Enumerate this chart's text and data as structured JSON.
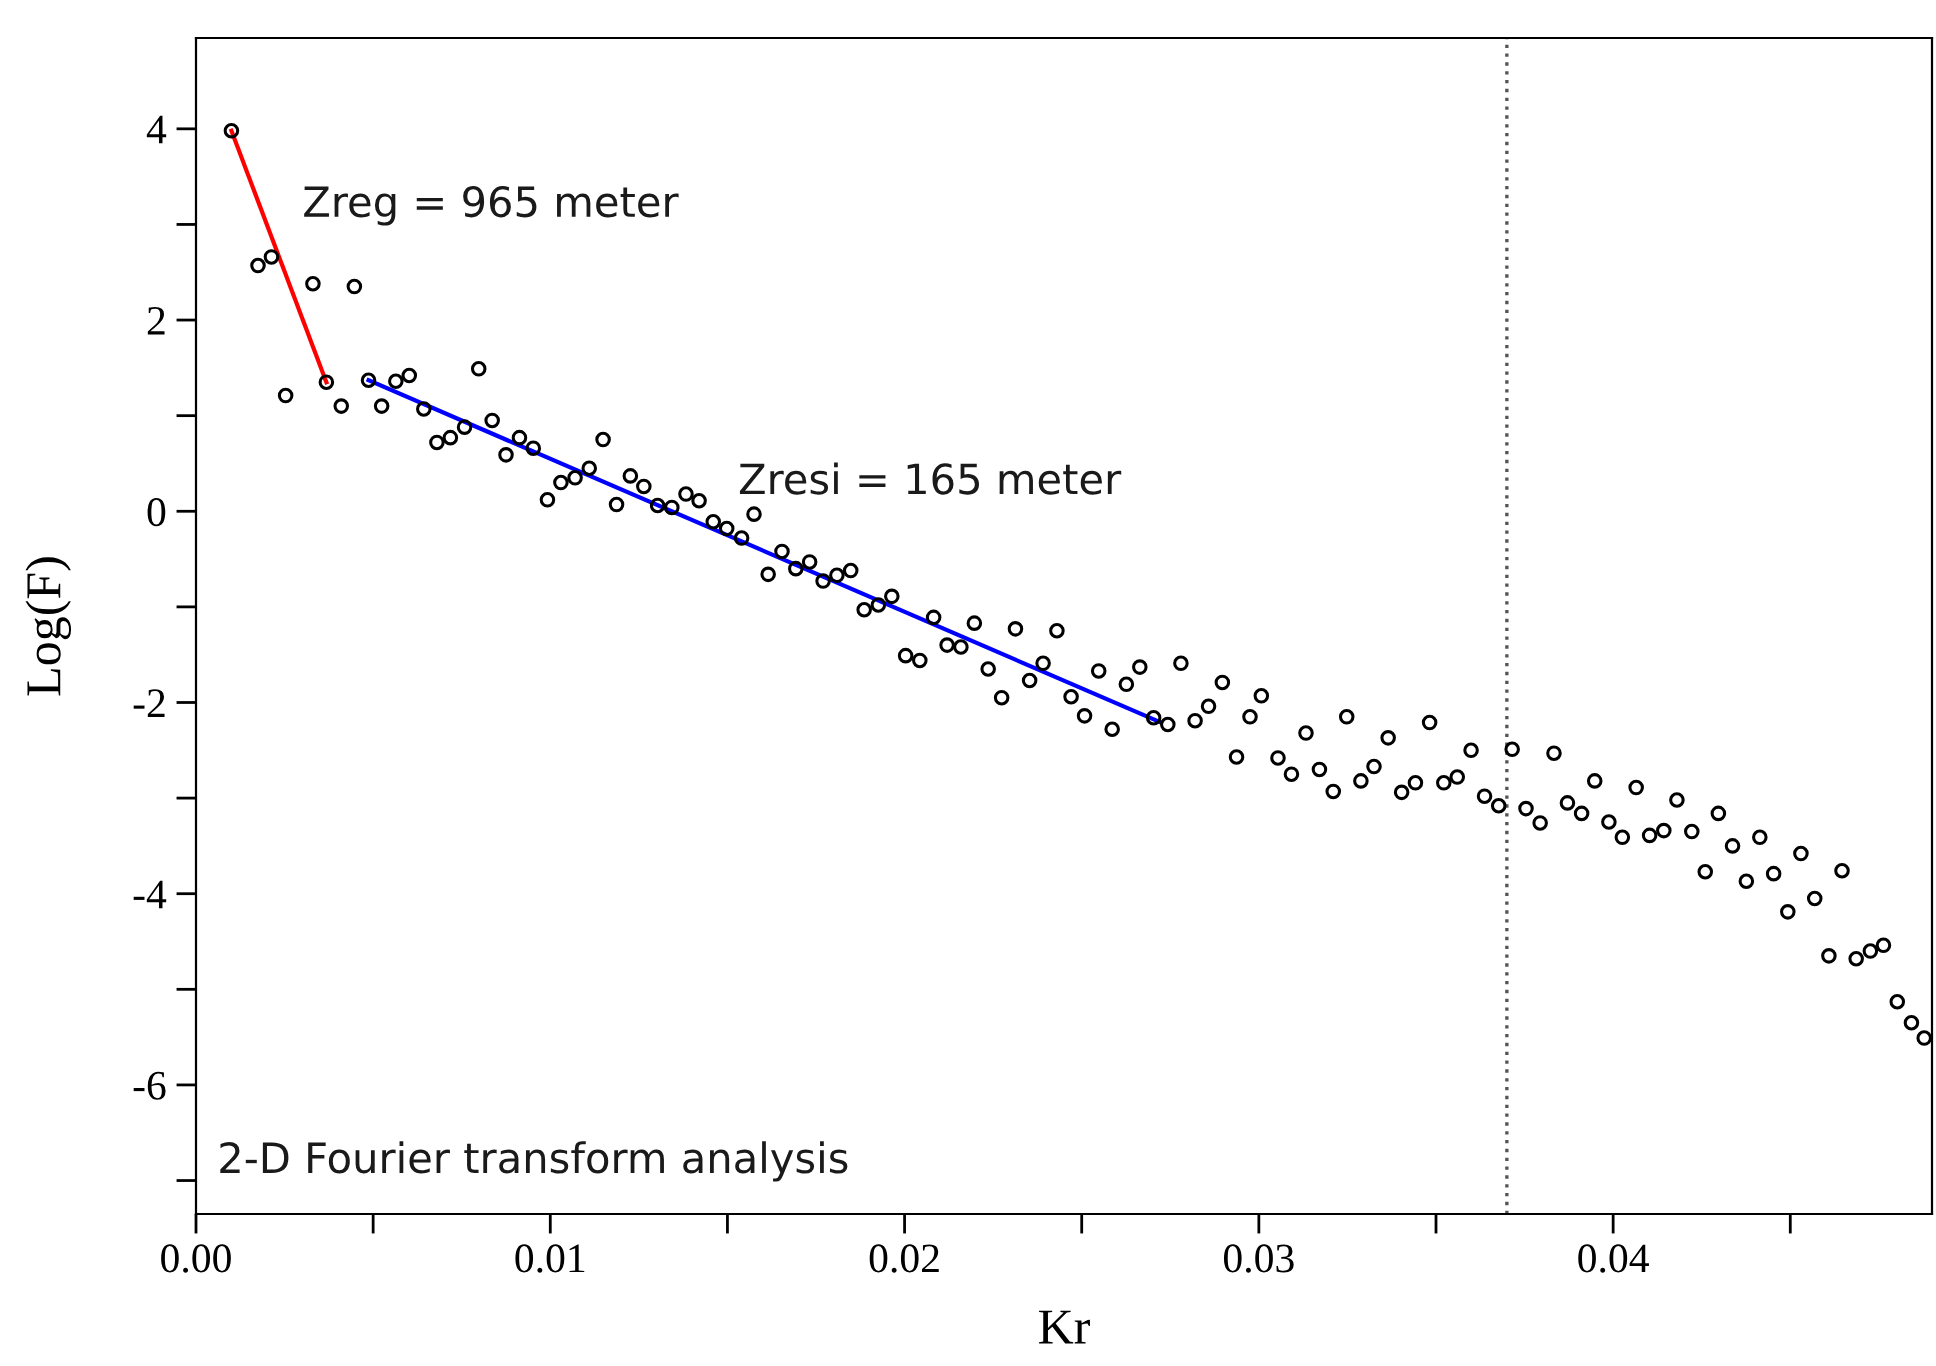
{
  "chart_data": {
    "type": "scatter",
    "xlabel": "Kr",
    "ylabel": "Log(F)",
    "annotations": [
      "Zreg = 965 meter",
      "Zresi = 165 meter",
      "2-D Fourier transform analysis"
    ],
    "xlim": [
      0,
      0.049
    ],
    "ylim": [
      -7.35,
      4.95
    ],
    "xticks": [
      {
        "value": 0,
        "label": "0.00"
      },
      {
        "value": 0.005,
        "label": null
      },
      {
        "value": 0.01,
        "label": "0.01"
      },
      {
        "value": 0.015,
        "label": null
      },
      {
        "value": 0.02,
        "label": "0.02"
      },
      {
        "value": 0.025,
        "label": null
      },
      {
        "value": 0.03,
        "label": "0.03"
      },
      {
        "value": 0.035,
        "label": null
      },
      {
        "value": 0.04,
        "label": "0.04"
      },
      {
        "value": 0.045,
        "label": null
      }
    ],
    "yticks": [
      {
        "value": -7,
        "label": null
      },
      -6,
      {
        "value": -5,
        "label": null
      },
      -4,
      {
        "value": -3,
        "label": null
      },
      -2,
      {
        "value": -1,
        "label": null
      },
      0,
      {
        "value": 1,
        "label": null
      },
      2,
      {
        "value": 3,
        "label": null
      },
      4
    ],
    "ref_lines": [
      {
        "axis": "x",
        "value": 0.037,
        "color": "#555555",
        "line_style": "dotted"
      }
    ],
    "grid": false,
    "series": [
      {
        "color": "#000000",
        "marker": "circle",
        "x": [
          0.001,
          0.00175,
          0.00213,
          0.00253,
          0.0033,
          0.00368,
          0.0041,
          0.00447,
          0.00487,
          0.00524,
          0.00564,
          0.00602,
          0.00643,
          0.0068,
          0.00718,
          0.00758,
          0.00798,
          0.00836,
          0.00875,
          0.00913,
          0.00952,
          0.00992,
          0.0103,
          0.0107,
          0.0111,
          0.01149,
          0.01187,
          0.01226,
          0.01264,
          0.01303,
          0.01343,
          0.01383,
          0.0142,
          0.0146,
          0.01498,
          0.0154,
          0.01575,
          0.01615,
          0.01654,
          0.01693,
          0.01732,
          0.0177,
          0.01809,
          0.01848,
          0.01886,
          0.01926,
          0.01964,
          0.02003,
          0.02043,
          0.02082,
          0.0212,
          0.02159,
          0.02197,
          0.02236,
          0.02274,
          0.02313,
          0.02353,
          0.02391,
          0.0243,
          0.0247,
          0.02508,
          0.02548,
          0.02586,
          0.02626,
          0.02664,
          0.02703,
          0.02743,
          0.0278,
          0.0282,
          0.02858,
          0.02897,
          0.02937,
          0.02975,
          0.03007,
          0.03054,
          0.03092,
          0.03133,
          0.03171,
          0.0321,
          0.03248,
          0.03288,
          0.03325,
          0.03365,
          0.03403,
          0.03442,
          0.03482,
          0.03522,
          0.0356,
          0.03599,
          0.03637,
          0.03677,
          0.03715,
          0.03754,
          0.03794,
          0.03833,
          0.03871,
          0.03911,
          0.03948,
          0.03988,
          0.04026,
          0.04065,
          0.04103,
          0.04143,
          0.0418,
          0.04222,
          0.0426,
          0.04297,
          0.04337,
          0.04376,
          0.04414,
          0.04453,
          0.04493,
          0.0453,
          0.04569,
          0.04609,
          0.04646,
          0.04686,
          0.04726,
          0.04763,
          0.04802,
          0.04842,
          0.04878
        ],
        "values": [
          3.98,
          2.57,
          2.66,
          1.21,
          2.38,
          1.35,
          1.1,
          2.35,
          1.37,
          1.1,
          1.36,
          1.42,
          1.07,
          0.72,
          0.77,
          0.88,
          1.49,
          0.95,
          0.59,
          0.77,
          0.66,
          0.12,
          0.3,
          0.35,
          0.45,
          0.75,
          0.07,
          0.37,
          0.26,
          0.06,
          0.04,
          0.18,
          0.11,
          -0.11,
          -0.18,
          -0.28,
          -0.03,
          -0.66,
          -0.42,
          -0.6,
          -0.53,
          -0.73,
          -0.67,
          -0.62,
          -1.03,
          -0.98,
          -0.89,
          -1.51,
          -1.56,
          -1.11,
          -1.4,
          -1.42,
          -1.17,
          -1.65,
          -1.95,
          -1.23,
          -1.77,
          -1.59,
          -1.25,
          -1.94,
          -2.14,
          -1.67,
          -2.28,
          -1.81,
          -1.63,
          -2.16,
          -2.23,
          -1.59,
          -2.19,
          -2.04,
          -1.79,
          -2.57,
          -2.15,
          -1.93,
          -2.58,
          -2.75,
          -2.32,
          -2.7,
          -2.93,
          -2.15,
          -2.82,
          -2.67,
          -2.37,
          -2.94,
          -2.84,
          -2.21,
          -2.84,
          -2.78,
          -2.5,
          -2.98,
          -3.08,
          -2.49,
          -3.11,
          -3.26,
          -2.53,
          -3.05,
          -3.16,
          -2.82,
          -3.25,
          -3.41,
          -2.89,
          -3.39,
          -3.34,
          -3.02,
          -3.35,
          -3.77,
          -3.16,
          -3.5,
          -3.87,
          -3.41,
          -3.79,
          -4.19,
          -3.58,
          -4.05,
          -4.65,
          -3.76,
          -4.68,
          -4.6,
          -4.54,
          -5.13,
          -5.35,
          -5.51
        ]
      },
      {
        "type": "line",
        "color": "#ff0000",
        "x": [
          0.001,
          0.00368
        ],
        "values": [
          3.98,
          1.35
        ]
      },
      {
        "type": "line",
        "color": "#0000ff",
        "x": [
          0.00487,
          0.02724
        ],
        "values": [
          1.37,
          -2.21
        ]
      }
    ]
  }
}
